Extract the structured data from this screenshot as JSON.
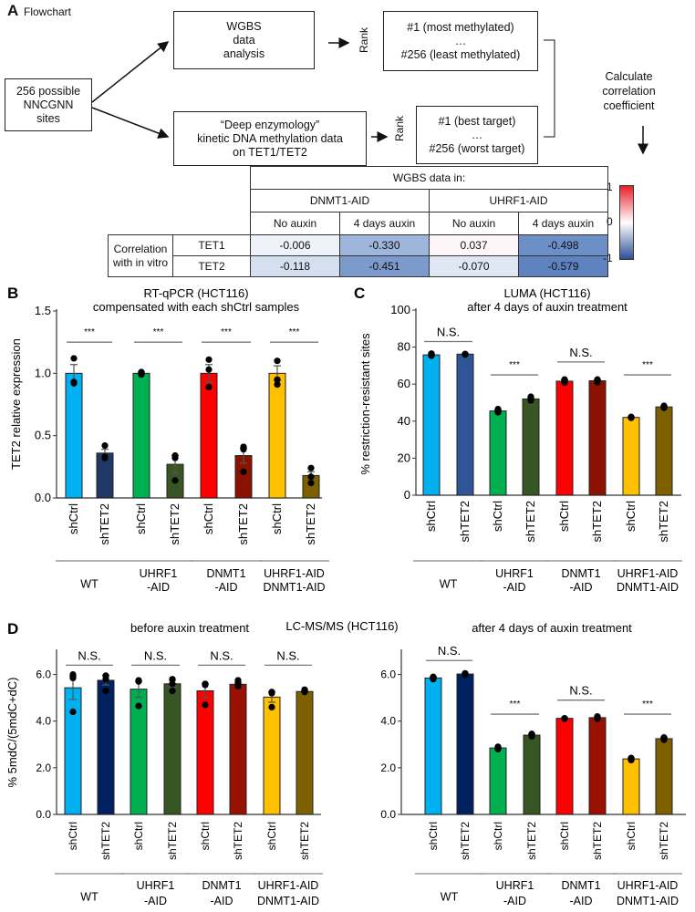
{
  "panelA": {
    "letter": "A",
    "subtitle": "Flowchart",
    "source_box": [
      "256 possible",
      "NNCGNN",
      "sites"
    ],
    "wgbs_box": [
      "WGBS",
      "data",
      "analysis"
    ],
    "enzymology_box": [
      "“Deep enzymology”",
      "kinetic DNA methylation data",
      "on TET1/TET2"
    ],
    "rank_label": "Rank",
    "wgbs_rank_box": [
      "#1 (most methylated)",
      "…",
      "#256 (least methylated)"
    ],
    "enzymology_rank_box": [
      "#1 (best target)",
      "…",
      "#256 (worst target)"
    ],
    "calc_text": [
      "Calculate",
      "correlation",
      "coefficient"
    ],
    "table": {
      "header": "WGBS data in:",
      "groups": [
        "DNMT1-AID",
        "UHRF1-AID"
      ],
      "conditions": [
        "No auxin",
        "4 days auxin",
        "No auxin",
        "4 days auxin"
      ],
      "row_header": "Correlation with in vitro",
      "rows": [
        {
          "label": "TET1",
          "values": [
            "-0.006",
            "-0.330",
            "0.037",
            "-0.498"
          ]
        },
        {
          "label": "TET2",
          "values": [
            "-0.118",
            "-0.451",
            "-0.070",
            "-0.579"
          ]
        }
      ]
    },
    "colorbar": {
      "max": "1",
      "mid": "0",
      "min": "-1",
      "colors": [
        "#e8202a",
        "#ffffff",
        "#2f4f93"
      ]
    }
  },
  "chart_data": [
    {
      "id": "B",
      "type": "bar",
      "letter": "B",
      "title": [
        "RT-qPCR (HCT116)",
        "compensated with each shCtrl samples"
      ],
      "ylabel": "TET2 relative expression",
      "ylim": [
        0,
        1.5
      ],
      "yticks": [
        "0.0",
        "0.5",
        "1.0",
        "1.5"
      ],
      "ytick_values": [
        0,
        0.5,
        1.0,
        1.5
      ],
      "categories": [
        "shCtrl",
        "shTET2",
        "shCtrl",
        "shTET2",
        "shCtrl",
        "shTET2",
        "shCtrl",
        "shTET2"
      ],
      "groups": [
        [
          "WT"
        ],
        [
          "UHRF1",
          "-AID"
        ],
        [
          "DNMT1",
          "-AID"
        ],
        [
          "UHRF1-AID",
          "DNMT1-AID"
        ]
      ],
      "values": [
        1.0,
        0.36,
        1.0,
        0.27,
        1.0,
        0.34,
        1.0,
        0.18
      ],
      "errors": [
        0.07,
        0.03,
        0.01,
        0.07,
        0.07,
        0.06,
        0.06,
        0.03
      ],
      "points": [
        [
          1.12,
          0.93,
          0.92
        ],
        [
          0.42,
          0.32,
          0.33
        ],
        [
          1.01,
          0.99,
          1.0
        ],
        [
          0.34,
          0.32,
          0.14
        ],
        [
          1.11,
          1.03,
          0.89
        ],
        [
          0.41,
          0.39,
          0.21
        ],
        [
          1.1,
          0.95,
          0.91
        ],
        [
          0.24,
          0.17,
          0.12
        ]
      ],
      "colors": [
        "#00b0f0",
        "#1f3864",
        "#00b050",
        "#375623",
        "#ff0000",
        "#8b1200",
        "#ffc000",
        "#7f6000"
      ],
      "significance": [
        {
          "label": "***",
          "level": 1.25
        },
        {
          "label": "***",
          "level": 1.25
        },
        {
          "label": "***",
          "level": 1.25
        },
        {
          "label": "***",
          "level": 1.25
        }
      ]
    },
    {
      "id": "C",
      "type": "bar",
      "letter": "C",
      "title": [
        "LUMA (HCT116)",
        "after 4 days of auxin treatment"
      ],
      "ylabel": "% restriction-resistant sites",
      "ylim": [
        0,
        100
      ],
      "yticks": [
        "0",
        "20",
        "40",
        "60",
        "80",
        "100"
      ],
      "ytick_values": [
        0,
        20,
        40,
        60,
        80,
        100
      ],
      "categories": [
        "shCtrl",
        "shTET2",
        "shCtrl",
        "shTET2",
        "shCtrl",
        "shTET2",
        "shCtrl",
        "shTET2"
      ],
      "groups": [
        [
          "WT"
        ],
        [
          "UHRF1",
          "-AID"
        ],
        [
          "DNMT1",
          "-AID"
        ],
        [
          "UHRF1-AID",
          "DNMT1-AID"
        ]
      ],
      "values": [
        75.8,
        76.2,
        45.5,
        52.0,
        61.6,
        61.8,
        42.0,
        47.7
      ],
      "errors": [
        0.5,
        0.3,
        0.7,
        0.8,
        0.7,
        0.6,
        0.3,
        0.4
      ],
      "points": [
        [
          76.5,
          75.5,
          75.3
        ],
        [
          76.3,
          76.1,
          76.0
        ],
        [
          46.5,
          45.2,
          44.8
        ],
        [
          53.2,
          52.0,
          51.2
        ],
        [
          62.5,
          61.5,
          60.8
        ],
        [
          62.5,
          61.8,
          61.0
        ],
        [
          42.3,
          42.0,
          41.8
        ],
        [
          48.3,
          47.7,
          47.2
        ]
      ],
      "colors": [
        "#00b0f0",
        "#2f5597",
        "#00b050",
        "#375623",
        "#ff0000",
        "#8b1200",
        "#ffc000",
        "#7f6000"
      ],
      "significance": [
        {
          "label": "N.S.",
          "level": 83
        },
        {
          "label": "***",
          "level": 65
        },
        {
          "label": "N.S.",
          "level": 72
        },
        {
          "label": "***",
          "level": 65
        }
      ]
    },
    {
      "id": "D1",
      "type": "bar",
      "letter": "D",
      "title": [
        "before auxin treatment"
      ],
      "center_title": "LC-MS/MS (HCT116)",
      "ylabel": "% 5mdC/(5mdC+dC)",
      "ylim": [
        0,
        7
      ],
      "yticks": [
        "0.0",
        "2.0",
        "4.0",
        "6.0"
      ],
      "ytick_values": [
        0,
        2,
        4,
        6
      ],
      "categories": [
        "shCtrl",
        "shTET2",
        "shCtrl",
        "shTET2",
        "shCtrl",
        "shTET2",
        "shCtrl",
        "shTET2"
      ],
      "groups": [
        [
          "WT"
        ],
        [
          "UHRF1",
          "-AID"
        ],
        [
          "DNMT1",
          "-AID"
        ],
        [
          "UHRF1-AID",
          "DNMT1-AID"
        ]
      ],
      "values": [
        5.43,
        5.75,
        5.37,
        5.6,
        5.3,
        5.58,
        5.03,
        5.27
      ],
      "errors": [
        0.5,
        0.2,
        0.35,
        0.15,
        0.3,
        0.08,
        0.22,
        0.04
      ],
      "points": [
        [
          6.0,
          5.85,
          4.4
        ],
        [
          5.95,
          5.8,
          5.3
        ],
        [
          5.75,
          5.7,
          4.65
        ],
        [
          5.8,
          5.6,
          5.3
        ],
        [
          5.6,
          5.55,
          4.7
        ],
        [
          5.75,
          5.6,
          5.5
        ],
        [
          5.25,
          5.2,
          4.6
        ],
        [
          5.35,
          5.3,
          5.25
        ]
      ],
      "colors": [
        "#00b0f0",
        "#002060",
        "#00b050",
        "#375623",
        "#ff0000",
        "#991100",
        "#ffc000",
        "#7f6000"
      ],
      "significance": [
        {
          "label": "N.S.",
          "level": 6.4
        },
        {
          "label": "N.S.",
          "level": 6.4
        },
        {
          "label": "N.S.",
          "level": 6.4
        },
        {
          "label": "N.S.",
          "level": 6.4
        }
      ]
    },
    {
      "id": "D2",
      "type": "bar",
      "title": [
        "after 4 days of auxin treatment"
      ],
      "ylabel": "",
      "ylim": [
        0,
        7
      ],
      "yticks": [
        "0.0",
        "2.0",
        "4.0",
        "6.0"
      ],
      "ytick_values": [
        0,
        2,
        4,
        6
      ],
      "categories": [
        "shCtrl",
        "shTET2",
        "shCtrl",
        "shTET2",
        "shCtrl",
        "shTET2",
        "shCtrl",
        "shTET2"
      ],
      "groups": [
        [
          "WT"
        ],
        [
          "UHRF1",
          "-AID"
        ],
        [
          "DNMT1",
          "-AID"
        ],
        [
          "UHRF1-AID",
          "DNMT1-AID"
        ]
      ],
      "values": [
        5.85,
        6.02,
        2.85,
        3.4,
        4.12,
        4.15,
        2.38,
        3.25
      ],
      "errors": [
        0.04,
        0.03,
        0.03,
        0.04,
        0.02,
        0.03,
        0.03,
        0.04
      ],
      "points": [
        [
          5.9,
          5.85,
          5.8
        ],
        [
          6.05,
          6.0,
          5.98
        ],
        [
          2.9,
          2.85,
          2.8
        ],
        [
          3.45,
          3.4,
          3.35
        ],
        [
          4.12,
          4.12,
          4.1
        ],
        [
          4.2,
          4.15,
          4.1
        ],
        [
          2.42,
          2.38,
          2.33
        ],
        [
          3.3,
          3.25,
          3.2
        ]
      ],
      "colors": [
        "#00b0f0",
        "#002060",
        "#00b050",
        "#375623",
        "#ff0000",
        "#991100",
        "#ffc000",
        "#7f6000"
      ],
      "significance": [
        {
          "label": "N.S.",
          "level": 6.6
        },
        {
          "label": "***",
          "level": 4.3
        },
        {
          "label": "N.S.",
          "level": 4.9
        },
        {
          "label": "***",
          "level": 4.3
        }
      ]
    }
  ]
}
